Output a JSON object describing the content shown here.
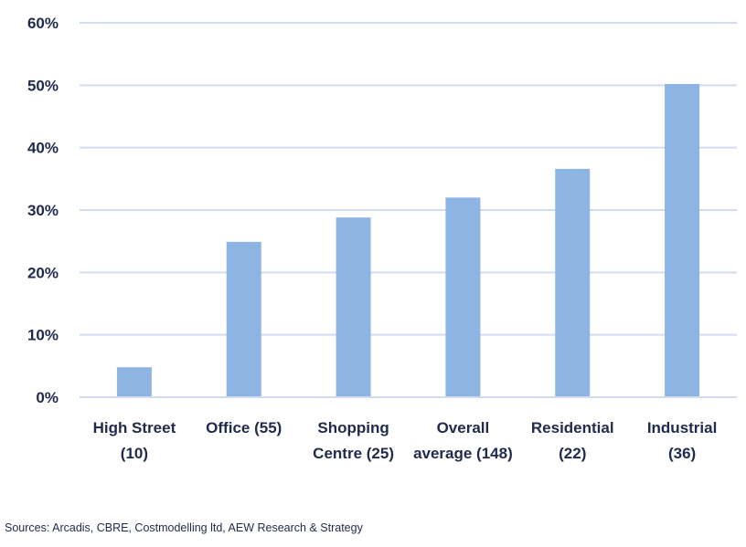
{
  "chart_data": {
    "type": "bar",
    "categories": [
      [
        "High Street",
        "(10)"
      ],
      [
        "Office (55)"
      ],
      [
        "Shopping",
        "Centre (25)"
      ],
      [
        "Overall",
        "average (148)"
      ],
      [
        "Residential",
        "(22)"
      ],
      [
        "Industrial",
        "(36)"
      ]
    ],
    "values": [
      4.8,
      24.9,
      28.8,
      32.0,
      36.6,
      50.2
    ],
    "value_format": "percent",
    "ylim": [
      0,
      60
    ],
    "yticks": [
      "0%",
      "10%",
      "20%",
      "30%",
      "40%",
      "50%",
      "60%"
    ],
    "title": "",
    "xlabel": "",
    "ylabel": "",
    "grid": true,
    "legend": "none",
    "colors": {
      "bar": "#8db4e2",
      "grid": "#d3dcef",
      "text": "#1f2a4d"
    }
  },
  "source": "Sources: Arcadis, CBRE, Costmodelling ltd, AEW Research & Strategy"
}
